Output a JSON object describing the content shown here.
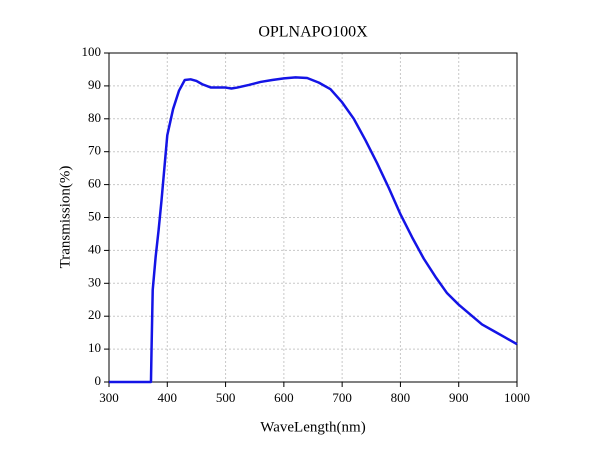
{
  "chart_data": {
    "type": "line",
    "title": "OPLNAPO100X",
    "x_label": "WaveLength(nm)",
    "y_label": "Transmission(%)",
    "x": [
      300,
      370,
      372,
      373,
      375,
      380,
      385,
      390,
      395,
      400,
      410,
      420,
      430,
      440,
      450,
      460,
      475,
      490,
      500,
      510,
      520,
      540,
      560,
      580,
      600,
      620,
      640,
      660,
      680,
      700,
      720,
      740,
      760,
      780,
      800,
      820,
      840,
      860,
      880,
      900,
      920,
      940,
      960,
      980,
      1000
    ],
    "series": [
      {
        "name": "OPLNAPO100X",
        "color": "#1414e6",
        "values": [
          0,
          0,
          0,
          10,
          28,
          38,
          46,
          55,
          65,
          75,
          83,
          88.5,
          91.8,
          92,
          91.5,
          90.5,
          89.5,
          89.5,
          89.5,
          89.2,
          89.5,
          90.3,
          91.2,
          91.8,
          92.3,
          92.6,
          92.4,
          91,
          89,
          85,
          80,
          73.5,
          66.5,
          59,
          51,
          44,
          37.5,
          32,
          27,
          23.5,
          20.5,
          17.5,
          15.5,
          13.5,
          11.5
        ]
      }
    ],
    "xlim": [
      300,
      1000
    ],
    "xticks": [
      300,
      400,
      500,
      600,
      700,
      800,
      900,
      1000
    ],
    "ylim": [
      0,
      100
    ],
    "yticks": [
      0,
      10,
      20,
      30,
      40,
      50,
      60,
      70,
      80,
      90,
      100
    ],
    "grid": true
  }
}
